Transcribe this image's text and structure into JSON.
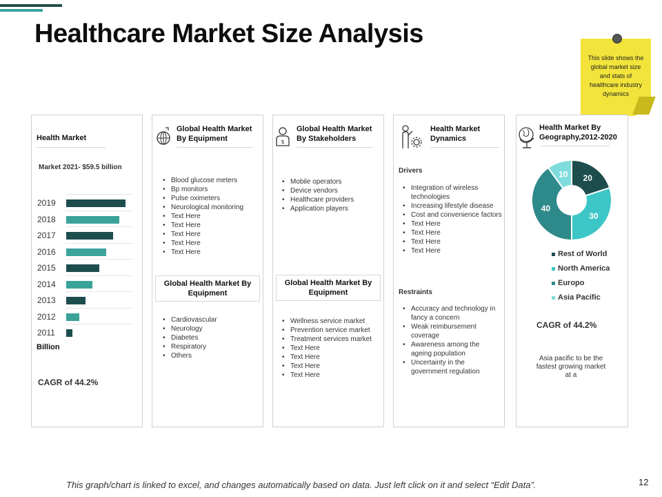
{
  "title": "Healthcare Market Size Analysis",
  "sticky_note": "This slide shows the global market size and stats of healthcare industry dynamics",
  "footer_note": "This graph/chart is linked to excel, and changes automatically based on data.  Just left click on it and select “Edit Data”.",
  "page_number": "12",
  "colors": {
    "dark": "#1e4d4d",
    "teal": "#3aa39a",
    "mid": "#2e8a8a",
    "light": "#5fcfcf"
  },
  "panel1": {
    "title": "Health Market",
    "subtitle": "Market 2021- $59.5 billion",
    "unit_label": "Billion",
    "cagr": "CAGR of 44.2%"
  },
  "panel2": {
    "title": "Global  Health Market By Equipment",
    "items": [
      "Blood glucose meters",
      "Bp monitors",
      "Pulse oximeters",
      "Neurological  monitoring",
      "Text Here",
      "Text Here",
      "Text Here",
      "Text Here",
      "Text Here"
    ],
    "box_title": "Global  Health Market By Equipment",
    "items2": [
      "Cardiovascular",
      "Neurology",
      "Diabetes",
      "Respiratory",
      "Others"
    ]
  },
  "panel3": {
    "title": "Global  Health Market By  Stakeholders",
    "items": [
      "Mobile  operators",
      "Device  vendors",
      "Healthcare  providers",
      "Application  players"
    ],
    "box_title": "Global  Health Market By Equipment",
    "items2": [
      "Wellness  service market",
      "Prevention  service market",
      "Treatment  services market",
      "Text Here",
      "Text Here",
      "Text Here",
      "Text Here"
    ]
  },
  "panel4": {
    "title": "Health Market Dynamics",
    "drivers_label": "Drivers",
    "drivers": [
      "Integration of wireless technologies",
      "Increasing lifestyle disease",
      "Cost and convenience factors",
      "Text Here",
      "Text Here",
      "Text Here",
      "Text Here"
    ],
    "restraints_label": "Restraints",
    "restraints": [
      "Accuracy and technology in fancy a concern",
      "Weak reimbursement coverage",
      "Awareness among the ageing population",
      "Uncertainty in the government regulation"
    ]
  },
  "panel5": {
    "title": "Health Market By Geography,2012-2020",
    "cagr": "CAGR of 44.2%",
    "note": "Asia pacific to be the fastest growing market at a"
  },
  "chart_data": [
    {
      "type": "bar",
      "orientation": "horizontal",
      "title": "Health Market",
      "categories": [
        "2019",
        "2018",
        "2017",
        "2016",
        "2015",
        "2014",
        "2013",
        "2012",
        "2011"
      ],
      "values": [
        8.8,
        7.9,
        6.9,
        5.9,
        4.9,
        3.9,
        2.9,
        1.9,
        0.9
      ],
      "xlabel": "Billion",
      "xlim": [
        0,
        10
      ],
      "bar_colors": [
        "#1e4d4d",
        "#3aa39a",
        "#1e4d4d",
        "#3aa39a",
        "#1e4d4d",
        "#3aa39a",
        "#1e4d4d",
        "#3aa39a",
        "#1e4d4d"
      ]
    },
    {
      "type": "pie",
      "subtype": "donut",
      "title": "Health Market By Geography,2012-2020",
      "labels": [
        "Rest of World",
        "North America",
        "Europo",
        "Asia Pacific"
      ],
      "values": [
        20,
        30,
        40,
        10
      ],
      "colors": [
        "#1e4d4d",
        "#3cc6c6",
        "#2e8a8a",
        "#7fdcdc"
      ]
    }
  ]
}
